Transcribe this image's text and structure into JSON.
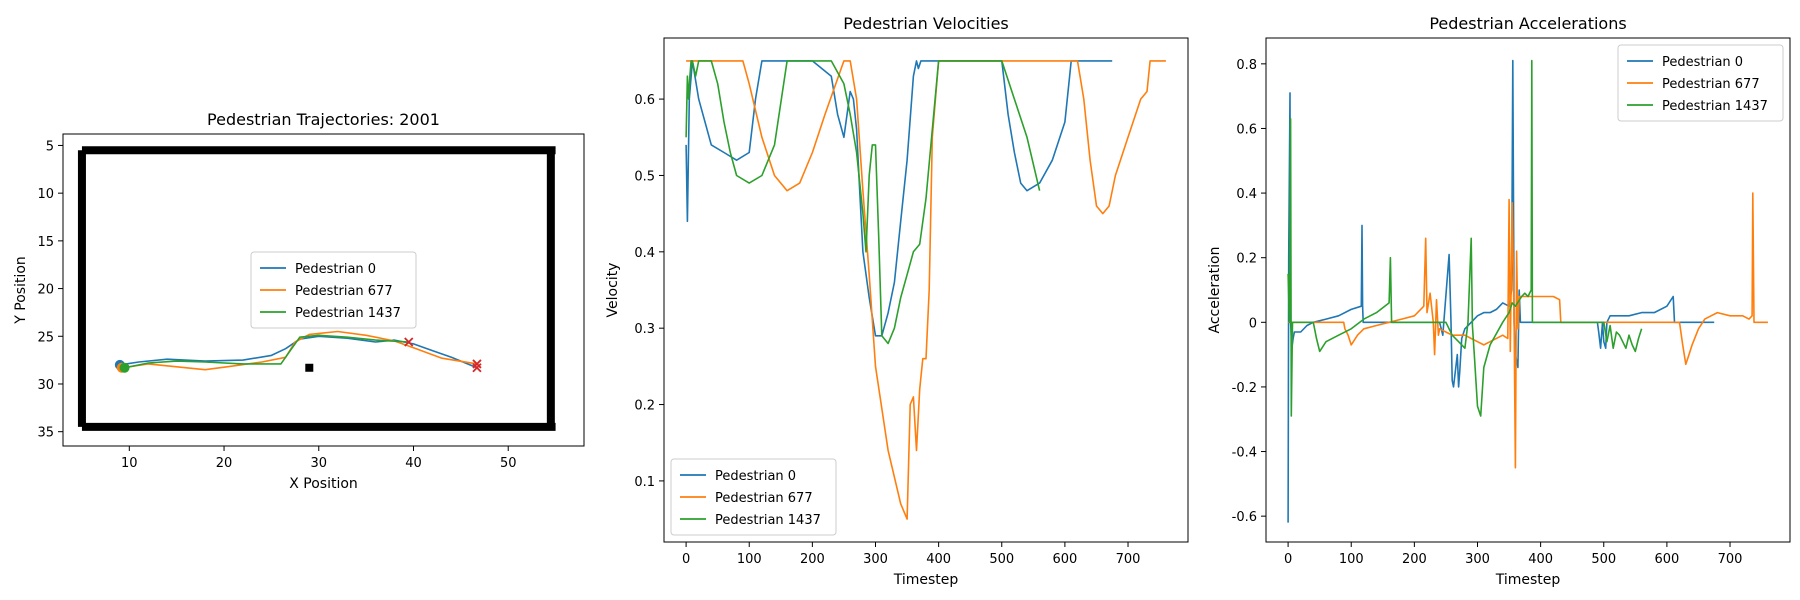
{
  "colors": {
    "ped0": "#1f77b4",
    "ped677": "#ff7f0e",
    "ped1437": "#2ca02c",
    "walls": "#000000",
    "end_marker": "#d62728"
  },
  "chart_data": [
    {
      "type": "line",
      "title": "Pedestrian Trajectories: 2001",
      "xlabel": "X Position",
      "ylabel": "Y Position",
      "xlim": [
        3,
        58
      ],
      "ylim": [
        36.5,
        3.8
      ],
      "y_inverted": true,
      "xticks": [
        10,
        20,
        30,
        40,
        50
      ],
      "yticks": [
        5,
        10,
        15,
        20,
        25,
        30,
        35
      ],
      "legend_position": "center",
      "walls": [
        [
          5,
          5.5,
          55,
          5.5
        ],
        [
          5,
          34.5,
          55,
          34.5
        ],
        [
          5,
          5.5,
          5,
          34.5
        ],
        [
          54.5,
          5.5,
          54.5,
          34.5
        ]
      ],
      "obstacle": [
        29,
        28.3
      ],
      "series": [
        {
          "name": "Pedestrian 0",
          "color": "#1f77b4",
          "x": [
            9,
            11,
            14,
            18,
            22,
            25,
            26.5,
            28,
            30,
            33,
            36,
            38,
            40,
            42,
            44,
            46.7
          ],
          "y": [
            28,
            27.7,
            27.4,
            27.6,
            27.5,
            27,
            26.3,
            25.3,
            25,
            25.2,
            25.6,
            25.4,
            25.8,
            26.5,
            27.2,
            28.3
          ]
        },
        {
          "name": "Pedestrian 677",
          "color": "#ff7f0e",
          "x": [
            9.2,
            12,
            15,
            18,
            21,
            24,
            26.5,
            27.5,
            29,
            32,
            35,
            38,
            40,
            43,
            46.7
          ],
          "y": [
            28.3,
            27.9,
            28.2,
            28.5,
            28.1,
            27.7,
            27.2,
            25.6,
            24.8,
            24.5,
            24.9,
            25.5,
            26.2,
            27.3,
            27.9
          ]
        },
        {
          "name": "Pedestrian 1437",
          "color": "#2ca02c",
          "x": [
            9.5,
            12,
            15,
            18,
            22,
            26,
            27,
            28,
            30,
            33,
            36,
            39.5
          ],
          "y": [
            28.3,
            27.8,
            27.6,
            27.7,
            27.9,
            27.9,
            26.5,
            25.1,
            24.9,
            25.1,
            25.4,
            25.6
          ]
        }
      ],
      "start_marker": "circle",
      "end_marker": "x"
    },
    {
      "type": "line",
      "title": "Pedestrian Velocities",
      "xlabel": "Timestep",
      "ylabel": "Velocity",
      "xlim": [
        -35,
        795
      ],
      "ylim": [
        0.02,
        0.68
      ],
      "xticks": [
        0,
        100,
        200,
        300,
        400,
        500,
        600,
        700
      ],
      "yticks": [
        0.1,
        0.2,
        0.3,
        0.4,
        0.5,
        0.6
      ],
      "legend_position": "lower-left",
      "series": [
        {
          "name": "Pedestrian 0",
          "color": "#1f77b4",
          "x": [
            0,
            2,
            5,
            10,
            20,
            40,
            60,
            80,
            100,
            110,
            120,
            200,
            230,
            240,
            250,
            260,
            265,
            270,
            275,
            280,
            290,
            300,
            310,
            320,
            330,
            340,
            350,
            360,
            365,
            368,
            372,
            375,
            500,
            510,
            520,
            530,
            540,
            560,
            580,
            600,
            610,
            620,
            675
          ],
          "y": [
            0.54,
            0.44,
            0.6,
            0.65,
            0.6,
            0.54,
            0.53,
            0.52,
            0.53,
            0.6,
            0.65,
            0.65,
            0.63,
            0.58,
            0.55,
            0.61,
            0.6,
            0.56,
            0.48,
            0.4,
            0.34,
            0.29,
            0.29,
            0.32,
            0.36,
            0.44,
            0.52,
            0.63,
            0.65,
            0.64,
            0.65,
            0.65,
            0.65,
            0.58,
            0.53,
            0.49,
            0.48,
            0.49,
            0.52,
            0.57,
            0.65,
            0.65,
            0.65
          ]
        },
        {
          "name": "Pedestrian 677",
          "color": "#ff7f0e",
          "x": [
            0,
            90,
            100,
            120,
            140,
            160,
            180,
            200,
            220,
            250,
            260,
            270,
            280,
            290,
            300,
            320,
            340,
            350,
            355,
            360,
            365,
            370,
            375,
            380,
            385,
            390,
            400,
            620,
            630,
            640,
            650,
            660,
            670,
            680,
            700,
            720,
            730,
            735,
            740,
            760
          ],
          "y": [
            0.65,
            0.65,
            0.62,
            0.55,
            0.5,
            0.48,
            0.49,
            0.53,
            0.58,
            0.65,
            0.65,
            0.6,
            0.48,
            0.37,
            0.25,
            0.14,
            0.07,
            0.05,
            0.2,
            0.21,
            0.14,
            0.22,
            0.26,
            0.26,
            0.35,
            0.55,
            0.65,
            0.65,
            0.6,
            0.52,
            0.46,
            0.45,
            0.46,
            0.5,
            0.55,
            0.6,
            0.61,
            0.65,
            0.65,
            0.65
          ]
        },
        {
          "name": "Pedestrian 1437",
          "color": "#2ca02c",
          "x": [
            0,
            2,
            4,
            6,
            8,
            10,
            15,
            20,
            40,
            50,
            60,
            70,
            80,
            100,
            120,
            140,
            160,
            200,
            210,
            230,
            250,
            260,
            270,
            280,
            285,
            290,
            295,
            300,
            305,
            310,
            320,
            330,
            340,
            350,
            360,
            370,
            380,
            390,
            400,
            500,
            520,
            540,
            560
          ],
          "y": [
            0.55,
            0.63,
            0.6,
            0.63,
            0.65,
            0.65,
            0.63,
            0.65,
            0.65,
            0.62,
            0.57,
            0.53,
            0.5,
            0.49,
            0.5,
            0.54,
            0.65,
            0.65,
            0.65,
            0.65,
            0.62,
            0.58,
            0.53,
            0.45,
            0.4,
            0.5,
            0.54,
            0.54,
            0.42,
            0.29,
            0.28,
            0.3,
            0.34,
            0.37,
            0.4,
            0.41,
            0.47,
            0.56,
            0.65,
            0.65,
            0.6,
            0.55,
            0.48
          ]
        }
      ]
    },
    {
      "type": "line",
      "title": "Pedestrian Accelerations",
      "xlabel": "Timestep",
      "ylabel": "Acceleration",
      "xlim": [
        -35,
        795
      ],
      "ylim": [
        -0.68,
        0.88
      ],
      "xticks": [
        0,
        100,
        200,
        300,
        400,
        500,
        600,
        700
      ],
      "yticks": [
        -0.6,
        -0.4,
        -0.2,
        0.0,
        0.2,
        0.4,
        0.6,
        0.8
      ],
      "legend_position": "top-right",
      "series": [
        {
          "name": "Pedestrian 0",
          "color": "#1f77b4",
          "x": [
            0,
            1,
            3,
            4,
            6,
            8,
            10,
            20,
            30,
            40,
            60,
            80,
            100,
            116,
            117,
            118,
            119,
            120,
            200,
            240,
            245,
            255,
            258,
            260,
            262,
            265,
            268,
            270,
            272,
            275,
            280,
            290,
            300,
            310,
            320,
            330,
            340,
            350,
            354,
            356,
            358,
            360,
            364,
            366,
            368,
            370,
            372,
            375,
            490,
            492,
            495,
            498,
            500,
            503,
            505,
            510,
            515,
            520,
            525,
            530,
            535,
            540,
            560,
            580,
            600,
            610,
            612,
            614,
            675
          ],
          "y": [
            -0.62,
            0.2,
            0.71,
            0.0,
            -0.08,
            -0.05,
            -0.03,
            -0.03,
            -0.01,
            0.0,
            0.01,
            0.02,
            0.04,
            0.05,
            0.3,
            0.05,
            0.0,
            0.0,
            0.0,
            0.0,
            -0.04,
            0.21,
            0.0,
            -0.18,
            -0.2,
            -0.15,
            -0.1,
            -0.2,
            -0.15,
            -0.05,
            -0.02,
            0.0,
            0.02,
            0.03,
            0.03,
            0.04,
            0.06,
            0.05,
            0.1,
            0.81,
            0.0,
            -0.1,
            -0.14,
            0.1,
            0.0,
            0.0,
            0.0,
            0.0,
            0.0,
            -0.03,
            -0.08,
            0.0,
            -0.06,
            -0.08,
            0.0,
            0.02,
            0.02,
            0.02,
            0.02,
            0.02,
            0.02,
            0.02,
            0.03,
            0.03,
            0.05,
            0.08,
            0.0,
            0.0,
            0.0
          ]
        },
        {
          "name": "Pedestrian 677",
          "color": "#ff7f0e",
          "x": [
            0,
            88,
            90,
            95,
            100,
            110,
            120,
            140,
            160,
            180,
            200,
            215,
            218,
            220,
            225,
            230,
            232,
            235,
            238,
            240,
            250,
            260,
            270,
            280,
            290,
            300,
            310,
            320,
            340,
            348,
            350,
            352,
            355,
            358,
            360,
            362,
            364,
            366,
            368,
            370,
            375,
            380,
            400,
            420,
            430,
            432,
            620,
            625,
            630,
            635,
            640,
            650,
            660,
            670,
            680,
            700,
            720,
            730,
            735,
            736,
            738,
            740,
            745,
            760
          ],
          "y": [
            0.0,
            0.0,
            -0.02,
            -0.04,
            -0.07,
            -0.04,
            -0.02,
            -0.01,
            0.0,
            0.01,
            0.02,
            0.05,
            0.26,
            0.03,
            0.09,
            0.0,
            -0.1,
            0.07,
            -0.04,
            -0.02,
            -0.03,
            -0.04,
            -0.04,
            -0.04,
            -0.05,
            -0.06,
            -0.07,
            -0.06,
            -0.04,
            -0.05,
            0.38,
            -0.09,
            0.37,
            0.0,
            -0.45,
            0.22,
            -0.02,
            0.08,
            0.08,
            0.08,
            0.08,
            0.08,
            0.08,
            0.08,
            0.07,
            0.0,
            0.0,
            -0.07,
            -0.13,
            -0.1,
            -0.07,
            -0.02,
            0.01,
            0.02,
            0.03,
            0.02,
            0.02,
            0.01,
            0.02,
            0.4,
            0.0,
            0.0,
            0.0,
            0.0
          ]
        },
        {
          "name": "Pedestrian 1437",
          "color": "#2ca02c",
          "x": [
            0,
            2,
            4,
            5,
            7,
            9,
            10,
            40,
            45,
            50,
            60,
            80,
            100,
            120,
            140,
            160,
            162,
            164,
            200,
            250,
            260,
            270,
            280,
            285,
            290,
            292,
            295,
            300,
            305,
            310,
            320,
            340,
            350,
            355,
            360,
            370,
            375,
            380,
            385,
            386,
            387,
            390,
            400,
            500,
            505,
            510,
            515,
            520,
            525,
            530,
            535,
            540,
            545,
            550,
            555,
            560
          ],
          "y": [
            0.15,
            0.0,
            0.63,
            -0.29,
            0.0,
            0.0,
            0.0,
            0.0,
            -0.05,
            -0.09,
            -0.06,
            -0.04,
            -0.02,
            0.01,
            0.03,
            0.06,
            0.2,
            0.0,
            0.0,
            0.0,
            -0.04,
            -0.06,
            -0.08,
            0.0,
            0.26,
            -0.01,
            -0.1,
            -0.26,
            -0.29,
            -0.14,
            -0.07,
            0.0,
            0.03,
            0.06,
            0.05,
            0.08,
            0.09,
            0.08,
            0.1,
            0.81,
            0.0,
            0.0,
            0.0,
            0.0,
            -0.06,
            -0.01,
            -0.08,
            -0.03,
            -0.04,
            -0.06,
            -0.08,
            -0.04,
            -0.07,
            -0.09,
            -0.05,
            -0.02
          ]
        }
      ]
    }
  ]
}
